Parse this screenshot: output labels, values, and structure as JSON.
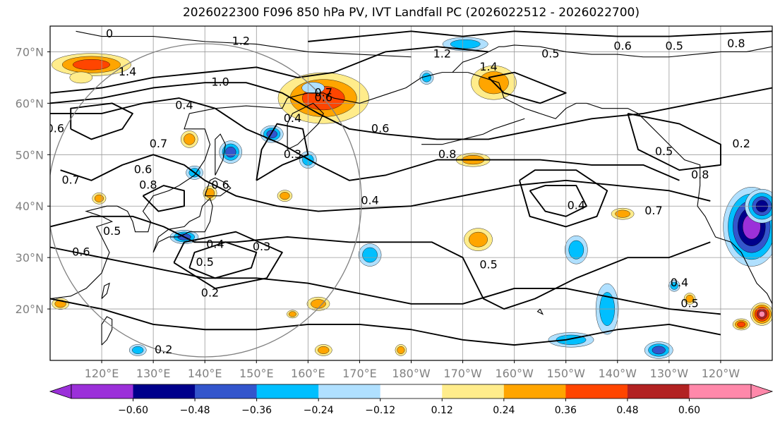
{
  "title": "2026022300 F096 850 hPa PV, IVT Landfall PC (2026022512 - 2026022700)",
  "map": {
    "lat_labels": [
      "70°N",
      "60°N",
      "50°N",
      "40°N",
      "30°N",
      "20°N"
    ],
    "lat_values": [
      70,
      60,
      50,
      40,
      30,
      20
    ],
    "lon_labels": [
      "120°E",
      "130°E",
      "140°E",
      "150°E",
      "160°E",
      "170°E",
      "180°W",
      "170°W",
      "160°W",
      "150°W",
      "140°W",
      "130°W",
      "120°W"
    ],
    "lat_range": [
      10,
      75
    ],
    "lon_range": [
      110,
      250
    ],
    "gridlines": true
  },
  "contour_labels": [
    {
      "text": "0",
      "lat": 73.4,
      "lon": 121.5
    },
    {
      "text": "1.2",
      "lat": 72,
      "lon": 147
    },
    {
      "text": "1.4",
      "lat": 66,
      "lon": 125
    },
    {
      "text": "1.0",
      "lat": 64,
      "lon": 143
    },
    {
      "text": "0.4",
      "lat": 59.5,
      "lon": 136
    },
    {
      "text": "0.6",
      "lat": 55,
      "lon": 111
    },
    {
      "text": "0.7",
      "lat": 52,
      "lon": 131
    },
    {
      "text": "0.6",
      "lat": 47,
      "lon": 128
    },
    {
      "text": "0.7",
      "lat": 45,
      "lon": 114
    },
    {
      "text": "0.8",
      "lat": 44,
      "lon": 129
    },
    {
      "text": "0.6",
      "lat": 44,
      "lon": 143
    },
    {
      "text": "0.4",
      "lat": 57,
      "lon": 157
    },
    {
      "text": "0.3",
      "lat": 50,
      "lon": 157
    },
    {
      "text": "0.6",
      "lat": 55,
      "lon": 174
    },
    {
      "text": "0.8",
      "lat": 50,
      "lon": 187
    },
    {
      "text": "0.4",
      "lat": 41,
      "lon": 172
    },
    {
      "text": "0.3",
      "lat": 32,
      "lon": 151
    },
    {
      "text": "0.4",
      "lat": 32.5,
      "lon": 142
    },
    {
      "text": "0.5",
      "lat": 29,
      "lon": 140
    },
    {
      "text": "0.2",
      "lat": 23,
      "lon": 141
    },
    {
      "text": "0.2",
      "lat": 12,
      "lon": 132
    },
    {
      "text": "0.5",
      "lat": 28.5,
      "lon": 195
    },
    {
      "text": "0.4",
      "lat": 40,
      "lon": 212
    },
    {
      "text": "0.7",
      "lat": 39,
      "lon": 227
    },
    {
      "text": "0.8",
      "lat": 46,
      "lon": 236
    },
    {
      "text": "0.5",
      "lat": 50.5,
      "lon": 229
    },
    {
      "text": "0.2",
      "lat": 52,
      "lon": 244
    },
    {
      "text": "0.6",
      "lat": 71,
      "lon": 221
    },
    {
      "text": "0.5",
      "lat": 71,
      "lon": 231
    },
    {
      "text": "0.8",
      "lat": 71.5,
      "lon": 243
    },
    {
      "text": "0.5",
      "lat": 69.5,
      "lon": 207
    },
    {
      "text": "1.2",
      "lat": 69.5,
      "lon": 186
    },
    {
      "text": "1.4",
      "lat": 67,
      "lon": 195
    },
    {
      "text": "0.4",
      "lat": 25,
      "lon": 232
    },
    {
      "text": "0.5",
      "lat": 21,
      "lon": 234
    },
    {
      "text": "0.6",
      "lat": 31,
      "lon": 116
    },
    {
      "text": "0.5",
      "lat": 35,
      "lon": 122
    },
    {
      "text": "0.6",
      "lat": 61,
      "lon": 163
    },
    {
      "text": "0.7",
      "lat": 62,
      "lon": 163
    }
  ],
  "colorbar": {
    "tick_labels": [
      "−0.60",
      "−0.48",
      "−0.36",
      "−0.24",
      "−0.12",
      "0.12",
      "0.24",
      "0.36",
      "0.48",
      "0.60"
    ],
    "colors": [
      "#9b30d9",
      "#00008b",
      "#3355cc",
      "#00bfff",
      "#b0e0ff",
      "#ffffff",
      "#ffec8b",
      "#ffa500",
      "#ff4500",
      "#b22222",
      "#ff88aa"
    ],
    "extend_low_color": "#9b30d9",
    "extend_high_color": "#ff88aa"
  },
  "shading": [
    {
      "lat": 67.5,
      "lon": 118,
      "rlat": 2,
      "rlon": 7,
      "value": 0.4
    },
    {
      "lat": 61,
      "lon": 163,
      "rlat": 4.5,
      "rlon": 8,
      "value": 0.4
    },
    {
      "lat": 64,
      "lon": 196,
      "rlat": 3,
      "rlon": 4,
      "value": 0.3
    },
    {
      "lat": 54,
      "lon": 153,
      "rlat": 1.5,
      "rlon": 2,
      "value": -0.4
    },
    {
      "lat": 49,
      "lon": 192,
      "rlat": 1.2,
      "rlon": 3,
      "value": 0.3
    },
    {
      "lat": 49,
      "lon": 160,
      "rlat": 1.5,
      "rlon": 1.5,
      "value": -0.3
    },
    {
      "lat": 50.5,
      "lon": 145,
      "rlat": 2,
      "rlon": 2,
      "value": -0.4
    },
    {
      "lat": 42.5,
      "lon": 141,
      "rlat": 1.3,
      "rlon": 1.2,
      "value": 0.3
    },
    {
      "lat": 53,
      "lon": 137,
      "rlat": 1.5,
      "rlon": 1.5,
      "value": 0.3
    },
    {
      "lat": 46.5,
      "lon": 138,
      "rlat": 1.2,
      "rlon": 1.5,
      "value": -0.3
    },
    {
      "lat": 34,
      "lon": 136,
      "rlat": 1.2,
      "rlon": 2.5,
      "value": -0.4
    },
    {
      "lat": 30.5,
      "lon": 172,
      "rlat": 2,
      "rlon": 2,
      "value": -0.3
    },
    {
      "lat": 33.5,
      "lon": 193,
      "rlat": 2,
      "rlon": 2.5,
      "value": 0.3
    },
    {
      "lat": 31.5,
      "lon": 212,
      "rlat": 2.5,
      "rlon": 2,
      "value": -0.3
    },
    {
      "lat": 38.5,
      "lon": 221,
      "rlat": 1,
      "rlon": 2,
      "value": 0.3
    },
    {
      "lat": 41.5,
      "lon": 119.5,
      "rlat": 1,
      "rlon": 1.2,
      "value": 0.3
    },
    {
      "lat": 42,
      "lon": 155.5,
      "rlat": 1,
      "rlon": 1.3,
      "value": 0.3
    },
    {
      "lat": 63,
      "lon": 161,
      "rlat": 1,
      "rlon": 2,
      "value": -0.2
    },
    {
      "lat": 71.5,
      "lon": 190.5,
      "rlat": 1.2,
      "rlon": 4,
      "value": -0.3
    },
    {
      "lat": 65,
      "lon": 183,
      "rlat": 1.2,
      "rlon": 1.2,
      "value": -0.3
    },
    {
      "lat": 36,
      "lon": 246,
      "rlat": 7,
      "rlon": 5,
      "value": -0.65
    },
    {
      "lat": 40,
      "lon": 248,
      "rlat": 3,
      "rlon": 3,
      "value": -0.5
    },
    {
      "lat": 19,
      "lon": 248,
      "rlat": 2,
      "rlon": 2,
      "value": 0.6
    },
    {
      "lat": 17,
      "lon": 244,
      "rlat": 1,
      "rlon": 1.5,
      "value": 0.4
    },
    {
      "lat": 21,
      "lon": 162,
      "rlat": 1.2,
      "rlon": 2,
      "value": 0.3
    },
    {
      "lat": 19,
      "lon": 157,
      "rlat": 0.7,
      "rlon": 1,
      "value": 0.3
    },
    {
      "lat": 12,
      "lon": 163,
      "rlat": 1,
      "rlon": 1.5,
      "value": 0.3
    },
    {
      "lat": 12,
      "lon": 178,
      "rlat": 1,
      "rlon": 1,
      "value": 0.3
    },
    {
      "lat": 12,
      "lon": 228,
      "rlat": 1.5,
      "rlon": 2.5,
      "value": -0.4
    },
    {
      "lat": 14,
      "lon": 211,
      "rlat": 1.3,
      "rlon": 4,
      "value": -0.3
    },
    {
      "lat": 20,
      "lon": 218,
      "rlat": 4.5,
      "rlon": 2,
      "value": -0.3
    },
    {
      "lat": 12,
      "lon": 127,
      "rlat": 1,
      "rlon": 1.5,
      "value": -0.3
    },
    {
      "lat": 21,
      "lon": 112,
      "rlat": 1,
      "rlon": 1.5,
      "value": 0.3
    },
    {
      "lat": 22,
      "lon": 234,
      "rlat": 1,
      "rlon": 1,
      "value": 0.3
    },
    {
      "lat": 24.5,
      "lon": 231,
      "rlat": 1,
      "rlon": 1,
      "value": -0.3
    },
    {
      "lat": 65,
      "lon": 116,
      "rlat": 1,
      "rlon": 2,
      "value": 0.2
    }
  ]
}
